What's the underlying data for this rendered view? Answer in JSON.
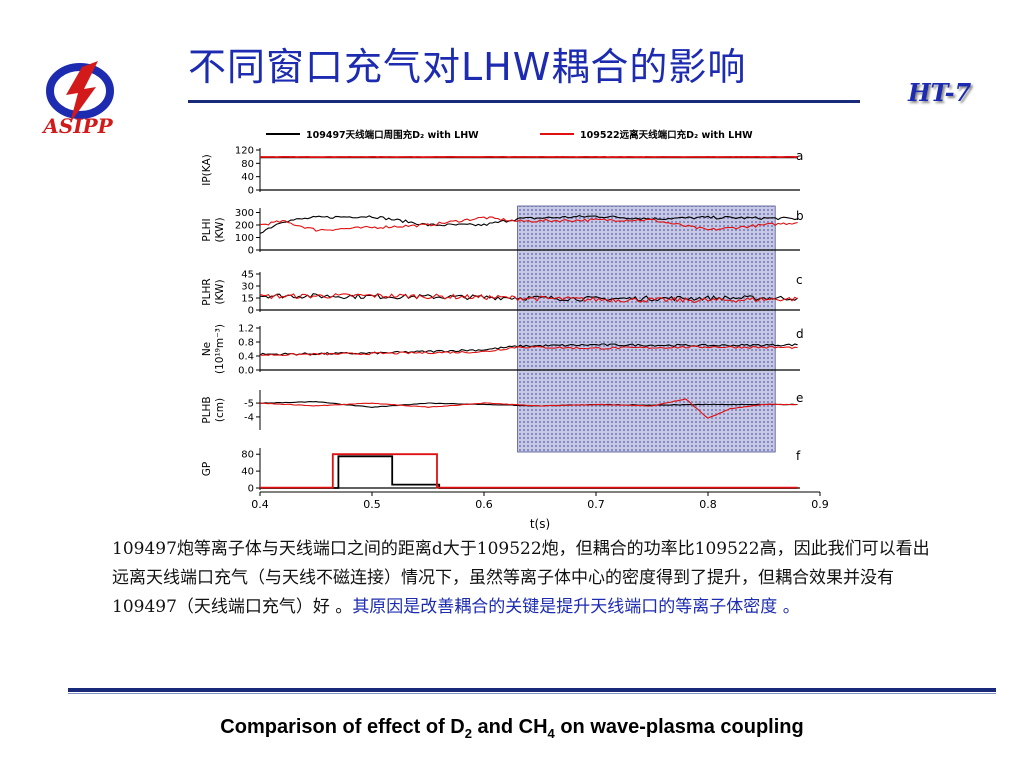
{
  "header": {
    "title": "不同窗口充气对LHW耦合的影响",
    "logo_text": "ASIPP",
    "tag": "HT-7"
  },
  "chart_data": {
    "type": "line",
    "legend": [
      {
        "name": "109497天线端口周围充D₂ with LHW",
        "color": "#000000"
      },
      {
        "name": "109522远离天线端口充D₂ with LHW",
        "color": "#e01010"
      }
    ],
    "x_axis": {
      "label": "t(s)",
      "range": [
        0.4,
        0.9
      ],
      "ticks": [
        0.4,
        0.5,
        0.6,
        0.7,
        0.8,
        0.9
      ]
    },
    "highlight_region": {
      "x": [
        0.63,
        0.86
      ]
    },
    "panels": [
      {
        "id": "a",
        "ylabel": [
          "IP(KA)"
        ],
        "yrange": [
          0,
          120
        ],
        "ticks": [
          0,
          40,
          80,
          120
        ],
        "series": [
          {
            "name": "109497",
            "x": [
              0.4,
              0.88
            ],
            "y": [
              98,
              98
            ]
          },
          {
            "name": "109522",
            "x": [
              0.4,
              0.88
            ],
            "y": [
              99,
              99
            ]
          }
        ]
      },
      {
        "id": "b",
        "ylabel": [
          "PLHI",
          "(KW)"
        ],
        "yrange": [
          0,
          320
        ],
        "ticks": [
          0,
          100,
          200,
          300
        ],
        "series": [
          {
            "name": "109497",
            "x": [
              0.4,
              0.42,
              0.45,
              0.5,
              0.55,
              0.6,
              0.63,
              0.7,
              0.75,
              0.8,
              0.85,
              0.88
            ],
            "y": [
              140,
              230,
              260,
              270,
              200,
              200,
              250,
              270,
              250,
              260,
              255,
              250
            ]
          },
          {
            "name": "109522",
            "x": [
              0.4,
              0.42,
              0.45,
              0.5,
              0.55,
              0.6,
              0.63,
              0.7,
              0.75,
              0.8,
              0.85,
              0.88
            ],
            "y": [
              200,
              230,
              160,
              180,
              200,
              260,
              230,
              240,
              240,
              160,
              200,
              220
            ]
          }
        ]
      },
      {
        "id": "c",
        "ylabel": [
          "PLHR",
          "(KW)"
        ],
        "yrange": [
          0,
          45
        ],
        "ticks": [
          0,
          15,
          30,
          45
        ],
        "series": [
          {
            "name": "109497",
            "x": [
              0.4,
              0.5,
              0.6,
              0.7,
              0.8,
              0.88
            ],
            "y": [
              18,
              17,
              16,
              14,
              15,
              15
            ]
          },
          {
            "name": "109522",
            "x": [
              0.4,
              0.5,
              0.6,
              0.7,
              0.8,
              0.88
            ],
            "y": [
              17,
              18,
              16,
              13,
              12,
              14
            ]
          }
        ]
      },
      {
        "id": "d",
        "ylabel": [
          "Ne",
          "(10¹⁹m⁻³)"
        ],
        "yrange": [
          0,
          1.2
        ],
        "ticks": [
          0.0,
          0.4,
          0.8,
          1.2
        ],
        "tick_labels": [
          "0.0",
          "0.4",
          "0.8",
          "1.2"
        ],
        "series": [
          {
            "name": "109497",
            "x": [
              0.4,
              0.5,
              0.6,
              0.63,
              0.7,
              0.8,
              0.88
            ],
            "y": [
              0.45,
              0.48,
              0.58,
              0.68,
              0.72,
              0.7,
              0.72
            ]
          },
          {
            "name": "109522",
            "x": [
              0.4,
              0.5,
              0.6,
              0.63,
              0.7,
              0.8,
              0.88
            ],
            "y": [
              0.43,
              0.47,
              0.52,
              0.66,
              0.62,
              0.66,
              0.64
            ]
          }
        ]
      },
      {
        "id": "e",
        "ylabel": [
          "PLHB",
          "(cm)"
        ],
        "yrange": [
          -5.8,
          -3.2
        ],
        "ticks": [
          -5,
          -4
        ],
        "inverted": true,
        "series": [
          {
            "name": "109497",
            "x": [
              0.4,
              0.45,
              0.5,
              0.55,
              0.6,
              0.65,
              0.7,
              0.75,
              0.8,
              0.85,
              0.88
            ],
            "y": [
              -5.0,
              -5.1,
              -4.7,
              -5.0,
              -4.9,
              -4.8,
              -4.9,
              -4.85,
              -4.9,
              -4.9,
              -4.9
            ]
          },
          {
            "name": "109522",
            "x": [
              0.4,
              0.45,
              0.5,
              0.55,
              0.6,
              0.65,
              0.7,
              0.75,
              0.78,
              0.79,
              0.8,
              0.82,
              0.85,
              0.88
            ],
            "y": [
              -5.0,
              -4.8,
              -5.0,
              -4.7,
              -5.0,
              -4.8,
              -4.9,
              -4.8,
              -5.3,
              -4.6,
              -3.9,
              -4.6,
              -4.9,
              -4.9
            ]
          }
        ]
      },
      {
        "id": "f",
        "ylabel": [
          "GP"
        ],
        "yrange": [
          0,
          90
        ],
        "ticks": [
          0,
          40,
          80
        ],
        "series": [
          {
            "name": "109497",
            "x": [
              0.4,
              0.47,
              0.47,
              0.518,
              0.518,
              0.56,
              0.56,
              0.88
            ],
            "y": [
              0,
              0,
              75,
              75,
              8,
              8,
              0,
              0
            ]
          },
          {
            "name": "109522",
            "x": [
              0.4,
              0.465,
              0.465,
              0.558,
              0.558,
              0.88
            ],
            "y": [
              1,
              1,
              80,
              80,
              1,
              1
            ]
          }
        ]
      }
    ]
  },
  "description": {
    "text_black": "109497炮等离子体与天线端口之间的距离d大于109522炮，但耦合的功率比109522高，因此我们可以看出远离天线端口充气（与天线不磁连接）情况下，虽然等离子体中心的密度得到了提升，但耦合效果并没有109497（天线端口充气）好 。",
    "text_blue": "其原因是改善耦合的关键是提升天线端口的等离子体密度 。"
  },
  "caption": {
    "part1": "Comparison of effect of D",
    "sub1": "2",
    "part2": " and CH",
    "sub2": "4",
    "part3": " on wave-plasma coupling"
  }
}
